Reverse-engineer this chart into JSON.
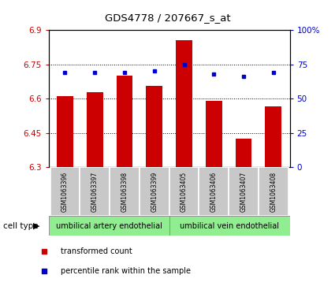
{
  "title": "GDS4778 / 207667_s_at",
  "samples": [
    "GSM1063396",
    "GSM1063397",
    "GSM1063398",
    "GSM1063399",
    "GSM1063405",
    "GSM1063406",
    "GSM1063407",
    "GSM1063408"
  ],
  "red_values": [
    6.61,
    6.63,
    6.7,
    6.655,
    6.855,
    6.59,
    6.425,
    6.565
  ],
  "blue_values": [
    69,
    69,
    69,
    70,
    75,
    68,
    66,
    69
  ],
  "ylim_left": [
    6.3,
    6.9
  ],
  "ylim_right": [
    0,
    100
  ],
  "yticks_left": [
    6.3,
    6.45,
    6.6,
    6.75,
    6.9
  ],
  "yticks_right": [
    0,
    25,
    50,
    75,
    100
  ],
  "ytick_labels_left": [
    "6.3",
    "6.45",
    "6.6",
    "6.75",
    "6.9"
  ],
  "ytick_labels_right": [
    "0",
    "25",
    "50",
    "75",
    "100%"
  ],
  "groups": [
    {
      "label": "umbilical artery endothelial",
      "count": 4
    },
    {
      "label": "umbilical vein endothelial",
      "count": 4
    }
  ],
  "group_color": "#90EE90",
  "cell_type_label": "cell type",
  "legend_red_label": "transformed count",
  "legend_blue_label": "percentile rank within the sample",
  "bar_color": "#CC0000",
  "dot_color": "#0000CC",
  "tick_color_left": "#CC0000",
  "tick_color_right": "#0000CC",
  "sample_bg": "#C8C8C8"
}
